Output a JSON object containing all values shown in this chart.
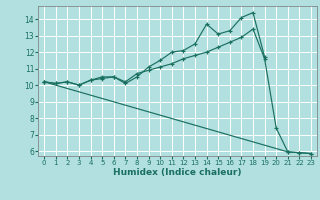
{
  "xlabel": "Humidex (Indice chaleur)",
  "bg_color": "#b2e0e0",
  "line_color": "#1a7060",
  "grid_color": "#ffffff",
  "xlim": [
    -0.5,
    23.5
  ],
  "ylim": [
    5.7,
    14.8
  ],
  "yticks": [
    6,
    7,
    8,
    9,
    10,
    11,
    12,
    13,
    14
  ],
  "xticks": [
    0,
    1,
    2,
    3,
    4,
    5,
    6,
    7,
    8,
    9,
    10,
    11,
    12,
    13,
    14,
    15,
    16,
    17,
    18,
    19,
    20,
    21,
    22,
    23
  ],
  "series": [
    {
      "x": [
        0,
        1,
        2,
        3,
        4,
        5,
        6,
        7,
        8,
        9,
        10,
        11,
        12,
        13,
        14,
        15,
        16,
        17,
        18,
        19
      ],
      "y": [
        10.2,
        10.1,
        10.2,
        10.0,
        10.3,
        10.4,
        10.5,
        10.1,
        10.5,
        11.1,
        11.5,
        12.0,
        12.1,
        12.5,
        13.7,
        13.1,
        13.3,
        14.1,
        14.4,
        11.7
      ]
    },
    {
      "x": [
        0,
        1,
        2,
        3,
        4,
        5,
        6,
        7,
        8,
        9,
        10,
        11,
        12,
        13,
        14,
        15,
        16,
        17,
        18,
        19,
        20,
        21,
        22,
        23
      ],
      "y": [
        10.2,
        10.1,
        10.2,
        10.0,
        10.3,
        10.5,
        10.5,
        10.2,
        10.7,
        10.9,
        11.1,
        11.3,
        11.6,
        11.8,
        12.0,
        12.3,
        12.6,
        12.9,
        13.4,
        11.6,
        7.4,
        5.95,
        5.9,
        5.85
      ]
    },
    {
      "x": [
        0,
        21,
        22,
        23
      ],
      "y": [
        10.2,
        5.95,
        5.9,
        5.85
      ]
    }
  ]
}
